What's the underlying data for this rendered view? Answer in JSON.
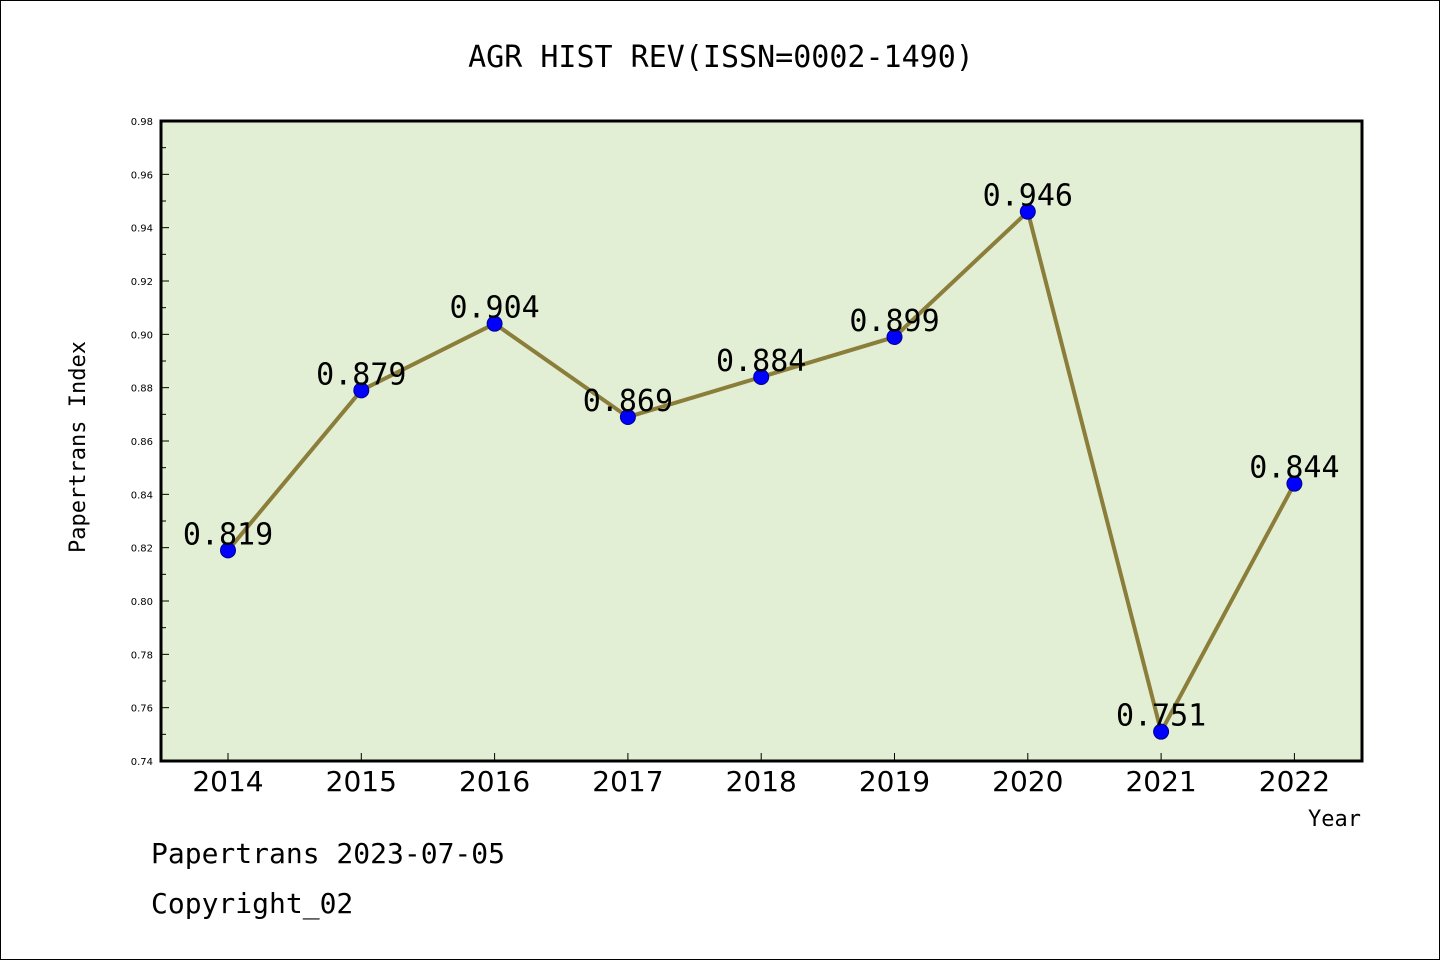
{
  "chart_data": {
    "type": "line",
    "title": "AGR HIST REV(ISSN=0002-1490)",
    "xlabel": "Year",
    "ylabel": "Papertrans Index",
    "categories": [
      "2014",
      "2015",
      "2016",
      "2017",
      "2018",
      "2019",
      "2020",
      "2021",
      "2022"
    ],
    "series": [
      {
        "values": [
          0.819,
          0.879,
          0.904,
          0.869,
          0.884,
          0.899,
          0.946,
          0.751,
          0.844
        ]
      }
    ],
    "data_labels": [
      "0.819",
      "0.879",
      "0.904",
      "0.869",
      "0.884",
      "0.899",
      "0.946",
      "0.751",
      "0.844"
    ],
    "ylim": [
      0.74,
      0.98
    ],
    "yticks": [
      "0.74",
      "0.76",
      "0.78",
      "0.80",
      "0.82",
      "0.84",
      "0.86",
      "0.88",
      "0.90",
      "0.92",
      "0.94",
      "0.96",
      "0.98"
    ],
    "grid": false,
    "colors": {
      "plot_bg": "#e2efd4",
      "line": "#8b7d3a",
      "marker": "#0000ff"
    }
  },
  "footer": {
    "line1": "Papertrans 2023-07-05",
    "line2": "Copyright_02"
  }
}
